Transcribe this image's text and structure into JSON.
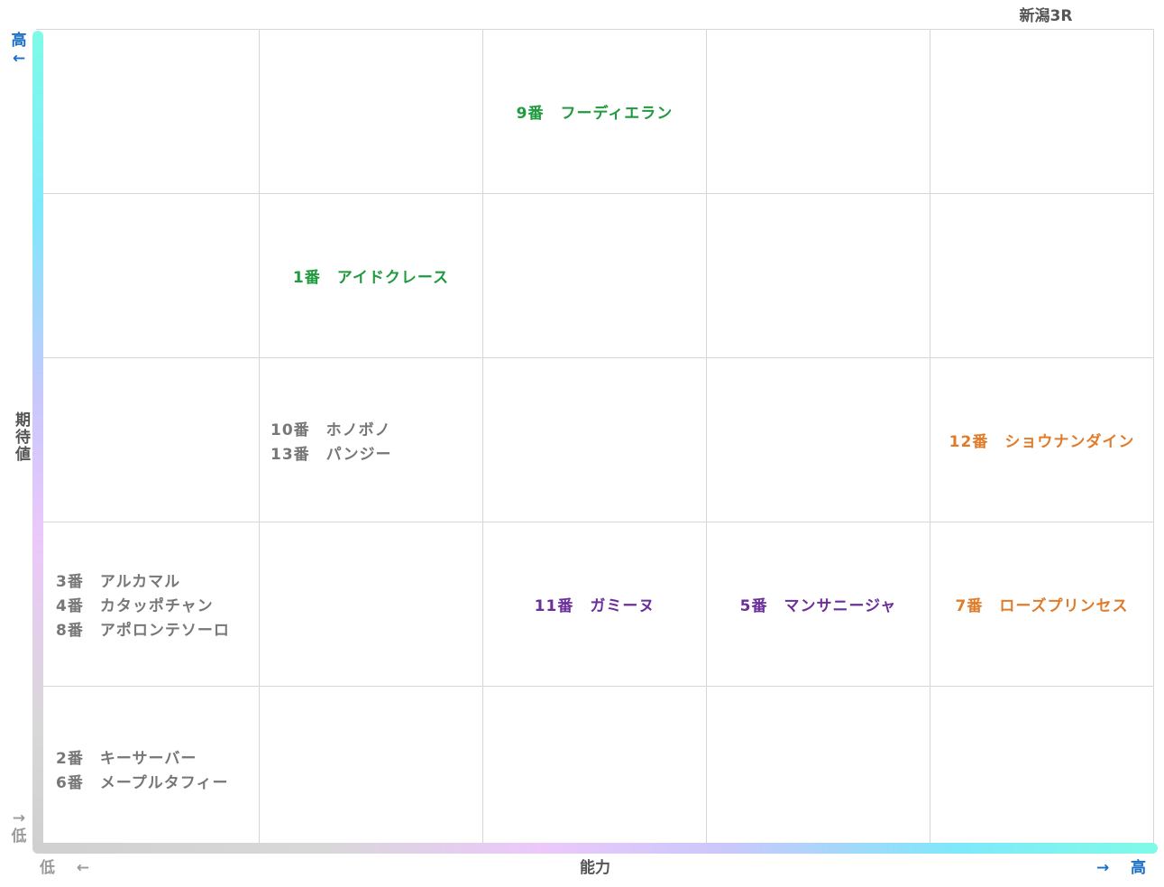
{
  "race_title": "新潟3R",
  "chart_data": {
    "type": "table",
    "xlabel": "能力",
    "ylabel": "期待値",
    "x_low_label": "低",
    "x_high_label": "高",
    "y_low_label": "低",
    "y_high_label": "高",
    "x_levels": 5,
    "y_levels": 5,
    "colors": {
      "gray": "#777777",
      "green": "#1f9a3e",
      "purple": "#6a2f9a",
      "orange": "#e07b2a"
    },
    "cells": [
      {
        "x": 3,
        "y": 5,
        "color": "green",
        "horses": [
          "9番　フーディエラン"
        ]
      },
      {
        "x": 2,
        "y": 4,
        "color": "green",
        "horses": [
          "1番　アイドクレース"
        ]
      },
      {
        "x": 2,
        "y": 3,
        "color": "gray",
        "horses": [
          "10番　ホノボノ",
          "13番　パンジー"
        ]
      },
      {
        "x": 5,
        "y": 3,
        "color": "orange",
        "horses": [
          "12番　ショウナンダイン"
        ]
      },
      {
        "x": 1,
        "y": 2,
        "color": "gray",
        "horses": [
          "3番　アルカマル",
          "4番　カタッポチャン",
          "8番　アポロンテソーロ"
        ]
      },
      {
        "x": 3,
        "y": 2,
        "color": "purple",
        "horses": [
          "11番　ガミーヌ"
        ]
      },
      {
        "x": 4,
        "y": 2,
        "color": "purple",
        "horses": [
          "5番　マンサニージャ"
        ]
      },
      {
        "x": 5,
        "y": 2,
        "color": "orange",
        "horses": [
          "7番　ローズプリンセス"
        ]
      },
      {
        "x": 1,
        "y": 1,
        "color": "gray",
        "horses": [
          "2番　キーサーバー",
          "6番　メープルタフィー"
        ]
      }
    ]
  }
}
